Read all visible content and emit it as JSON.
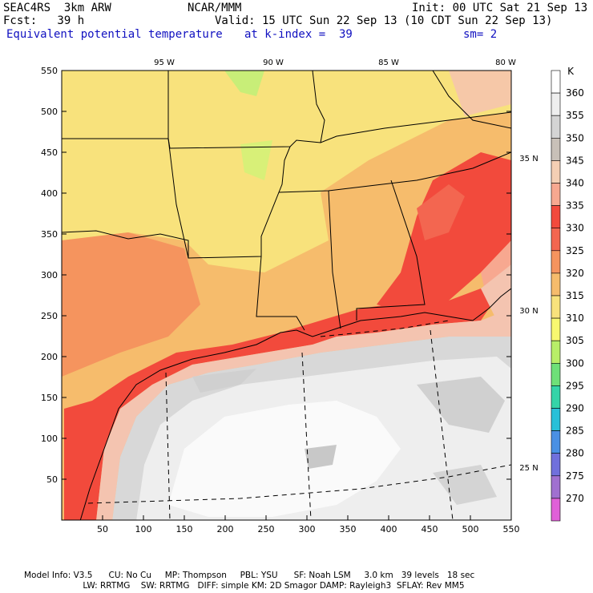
{
  "header": {
    "model": "SEAC4RS  3km ARW",
    "org": "NCAR/MMM",
    "init": "Init: 00 UTC Sat 21 Sep 13",
    "fcst": "Fcst:   39 h",
    "valid": "Valid: 15 UTC Sun 22 Sep 13 (10 CDT Sun 22 Sep 13)",
    "field": "Equivalent potential temperature",
    "level": "at k-index =  39",
    "smooth": "sm= 2"
  },
  "map": {
    "x_ticks": [
      "50",
      "100",
      "150",
      "200",
      "250",
      "300",
      "350",
      "400",
      "450",
      "500",
      "550"
    ],
    "y_ticks": [
      "550",
      "500",
      "450",
      "400",
      "350",
      "300",
      "250",
      "200",
      "150",
      "100",
      "50"
    ],
    "lon_labels": [
      "95 W",
      "90 W",
      "85 W",
      "80 W"
    ],
    "lat_labels": [
      "35 N",
      "30 N",
      "25 N"
    ]
  },
  "colorbar": {
    "unit": "K",
    "levels": [
      {
        "label": "360",
        "color": "#ffffff"
      },
      {
        "label": "355",
        "color": "#eeeeee"
      },
      {
        "label": "350",
        "color": "#d4d4d4"
      },
      {
        "label": "345",
        "color": "#c8c0b8"
      },
      {
        "label": "340",
        "color": "#f4cfb4"
      },
      {
        "label": "335",
        "color": "#f7a890"
      },
      {
        "label": "330",
        "color": "#f24a3c"
      },
      {
        "label": "325",
        "color": "#f36650"
      },
      {
        "label": "320",
        "color": "#f5945e"
      },
      {
        "label": "315",
        "color": "#f6bc6c"
      },
      {
        "label": "310",
        "color": "#f8e27c"
      },
      {
        "label": "305",
        "color": "#f8f870"
      },
      {
        "label": "300",
        "color": "#b8ee68"
      },
      {
        "label": "295",
        "color": "#6ee078"
      },
      {
        "label": "290",
        "color": "#34d4a8"
      },
      {
        "label": "285",
        "color": "#28c0d8"
      },
      {
        "label": "280",
        "color": "#4a90e4"
      },
      {
        "label": "275",
        "color": "#7070dc"
      },
      {
        "label": "270",
        "color": "#a070d0"
      },
      {
        "label": "",
        "color": "#e060d8"
      }
    ]
  },
  "footer": {
    "line1": "Model Info: V3.5      CU: No Cu     MP: Thompson     PBL: YSU      SF: Noah LSM     3.0 km   39 levels   18 sec",
    "line2": "                      LW: RRTMG    SW: RRTMG   DIFF: simple KM: 2D Smagor DAMP: Rayleigh3  SFLAY: Rev MM5"
  }
}
